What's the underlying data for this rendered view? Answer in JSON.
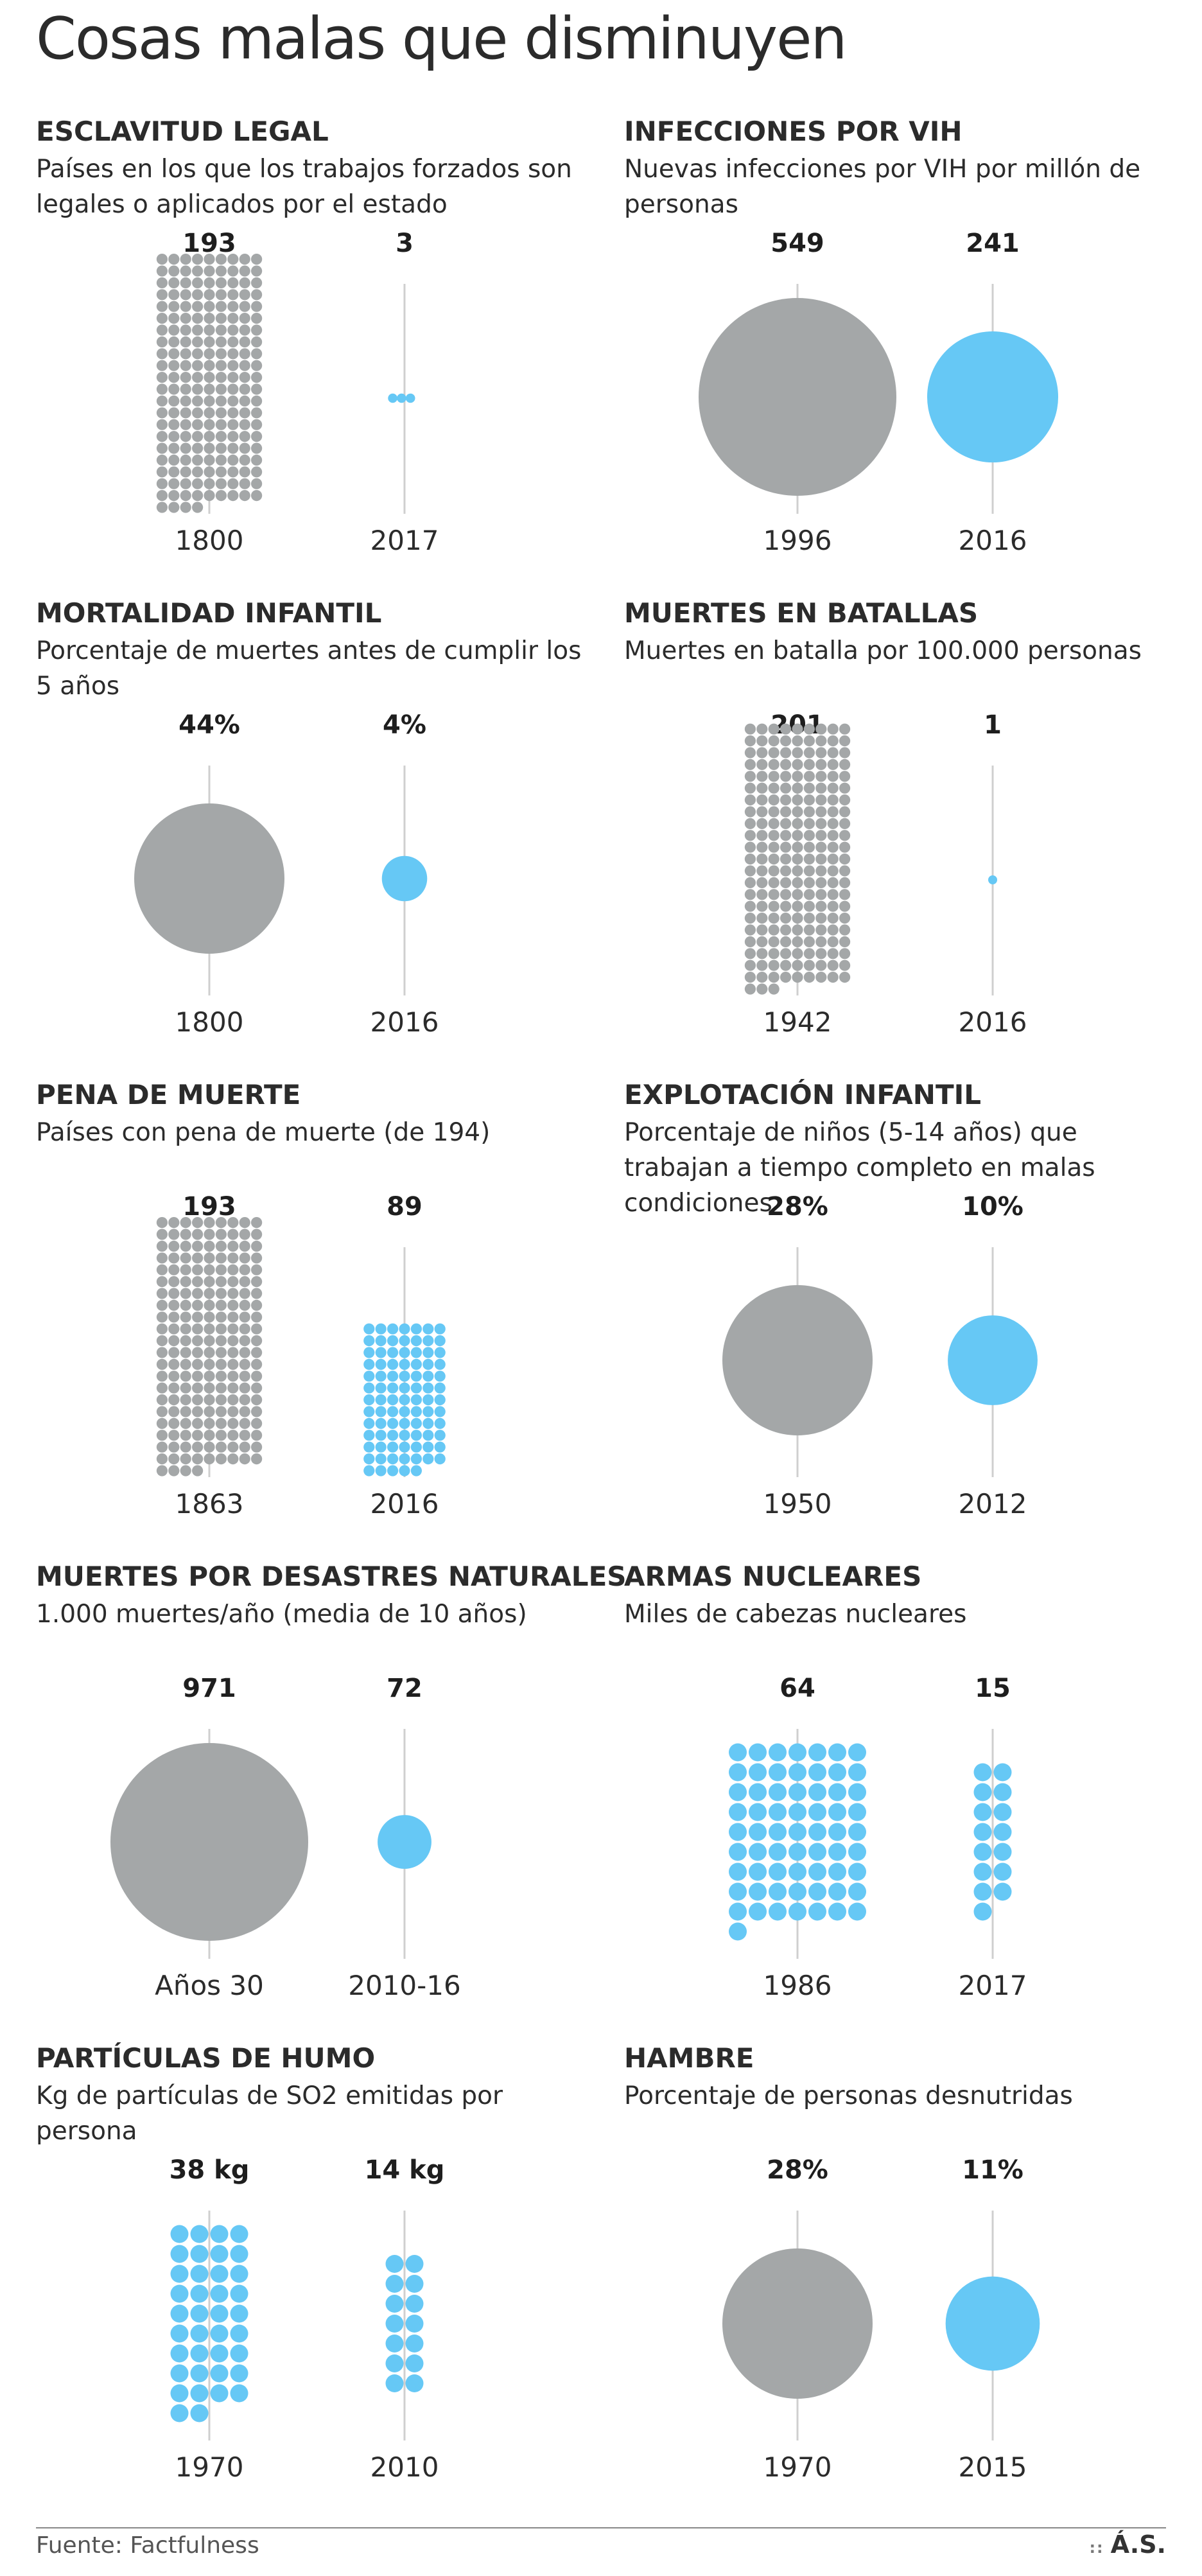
{
  "title": "Cosas malas que disminuyen",
  "colors": {
    "gray": "#a4a7a8",
    "blue": "#66c8f5",
    "axis": "#cfcfcf"
  },
  "chart_data": [
    {
      "type": "dots",
      "title": "ESCLAVITUD LEGAL",
      "subtitle": "Países en los que los trabajos forzados son legales o aplicados por el estado",
      "bars": [
        {
          "year": "1800",
          "value": 193,
          "label": "193",
          "color": "gray",
          "dots": 193
        },
        {
          "year": "2017",
          "value": 3,
          "label": "3",
          "color": "blue",
          "dots": 3
        }
      ]
    },
    {
      "type": "bubble",
      "title": "INFECCIONES POR VIH",
      "subtitle": "Nuevas infecciones por VIH por millón de personas",
      "bars": [
        {
          "year": "1996",
          "value": 549,
          "label": "549",
          "color": "gray"
        },
        {
          "year": "2016",
          "value": 241,
          "label": "241",
          "color": "blue"
        }
      ]
    },
    {
      "type": "bubble",
      "title": "MORTALIDAD INFANTIL",
      "subtitle": "Porcentaje de muertes antes de cumplir los 5 años",
      "bars": [
        {
          "year": "1800",
          "value": 44,
          "label": "44%",
          "color": "gray"
        },
        {
          "year": "2016",
          "value": 4,
          "label": "4%",
          "color": "blue"
        }
      ]
    },
    {
      "type": "dots",
      "title": "MUERTES EN BATALLAS",
      "subtitle": "Muertes en batalla por 100.000 personas",
      "bars": [
        {
          "year": "1942",
          "value": 201,
          "label": "201",
          "color": "gray",
          "dots": 201
        },
        {
          "year": "2016",
          "value": 1,
          "label": "1",
          "color": "blue",
          "dots": 1
        }
      ]
    },
    {
      "type": "dots",
      "title": "PENA DE MUERTE",
      "subtitle": "Países con pena de muerte (de 194)",
      "bars": [
        {
          "year": "1863",
          "value": 193,
          "label": "193",
          "color": "gray",
          "dots": 193
        },
        {
          "year": "2016",
          "value": 89,
          "label": "89",
          "color": "blue",
          "dots": 89
        }
      ]
    },
    {
      "type": "bubble",
      "title": "EXPLOTACIÓN INFANTIL",
      "subtitle": "Porcentaje de niños (5-14 años) que trabajan a tiempo completo en malas condiciones",
      "bars": [
        {
          "year": "1950",
          "value": 28,
          "label": "28%",
          "color": "gray"
        },
        {
          "year": "2012",
          "value": 10,
          "label": "10%",
          "color": "blue"
        }
      ]
    },
    {
      "type": "bubble",
      "title": "MUERTES POR DESASTRES NATURALES",
      "subtitle": "1.000 muertes/año (media de 10 años)",
      "bars": [
        {
          "year": "Años 30",
          "value": 971,
          "label": "971",
          "color": "gray"
        },
        {
          "year": "2010-16",
          "value": 72,
          "label": "72",
          "color": "blue"
        }
      ]
    },
    {
      "type": "dots",
      "title": "ARMAS NUCLEARES",
      "subtitle": "Miles de cabezas nucleares",
      "bars": [
        {
          "year": "1986",
          "value": 64,
          "label": "64",
          "color": "blue",
          "dots": 64
        },
        {
          "year": "2017",
          "value": 15,
          "label": "15",
          "color": "blue",
          "dots": 15
        }
      ]
    },
    {
      "type": "dots",
      "title": "PARTÍCULAS DE HUMO",
      "subtitle": "Kg de partículas de SO2 emitidas por persona",
      "bars": [
        {
          "year": "1970",
          "value": 38,
          "label": "38 kg",
          "color": "blue",
          "dots": 38
        },
        {
          "year": "2010",
          "value": 14,
          "label": "14 kg",
          "color": "blue",
          "dots": 14
        }
      ]
    },
    {
      "type": "bubble",
      "title": "HAMBRE",
      "subtitle": "Porcentaje de personas desnutridas",
      "bars": [
        {
          "year": "1970",
          "value": 28,
          "label": "28%",
          "color": "gray"
        },
        {
          "year": "2015",
          "value": 11,
          "label": "11%",
          "color": "blue"
        }
      ]
    }
  ],
  "footer": {
    "source": "Fuente: Factfulness",
    "logo": "Á.S.",
    "logo_dots": "::"
  }
}
